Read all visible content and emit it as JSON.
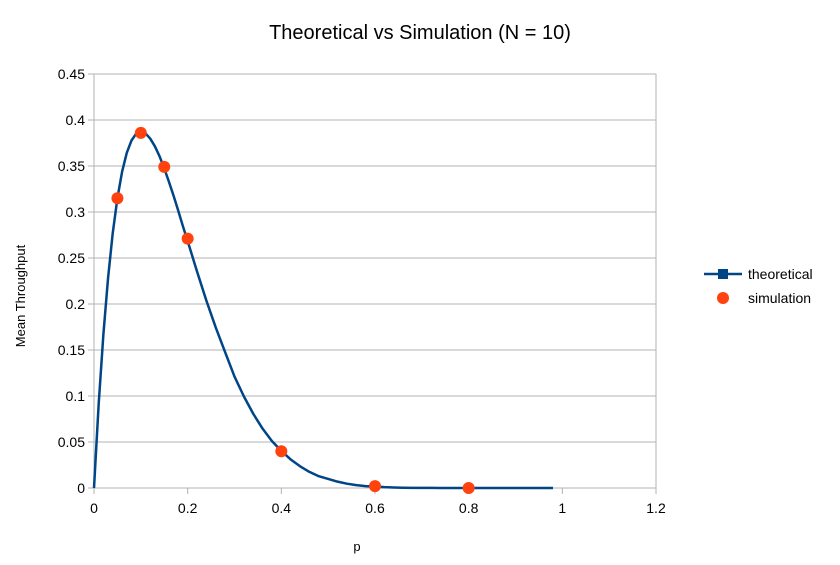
{
  "chart_data": {
    "type": "scatter",
    "title": "Theoretical vs Simulation (N = 10)",
    "xlabel": "p",
    "ylabel": "Mean Throughput",
    "xlim": [
      0,
      1.2
    ],
    "ylim": [
      0,
      0.45
    ],
    "xticks": [
      0,
      0.2,
      0.4,
      0.6,
      0.8,
      1,
      1.2
    ],
    "yticks": [
      0,
      0.05,
      0.1,
      0.15,
      0.2,
      0.25,
      0.3,
      0.35,
      0.4,
      0.45
    ],
    "grid": "horizontal",
    "legend_position": "right",
    "series": [
      {
        "name": "theoretical",
        "kind": "line",
        "color": "#004586",
        "x": [
          0,
          0.01,
          0.02,
          0.03,
          0.04,
          0.05,
          0.06,
          0.07,
          0.08,
          0.09,
          0.1,
          0.11,
          0.12,
          0.13,
          0.14,
          0.15,
          0.16,
          0.17,
          0.18,
          0.19,
          0.2,
          0.22,
          0.24,
          0.26,
          0.28,
          0.3,
          0.32,
          0.34,
          0.36,
          0.38,
          0.4,
          0.42,
          0.44,
          0.46,
          0.48,
          0.5,
          0.52,
          0.54,
          0.56,
          0.58,
          0.6,
          0.62,
          0.64,
          0.66,
          0.68,
          0.7,
          0.72,
          0.74,
          0.76,
          0.78,
          0.8,
          0.82,
          0.84,
          0.86,
          0.88,
          0.9,
          0.92,
          0.94,
          0.96,
          0.98
        ],
        "y": [
          0,
          0.0914,
          0.1667,
          0.2281,
          0.277,
          0.3151,
          0.3438,
          0.3643,
          0.3777,
          0.3851,
          0.3874,
          0.3854,
          0.3798,
          0.3714,
          0.3605,
          0.3474,
          0.3328,
          0.3175,
          0.3012,
          0.2843,
          0.2684,
          0.2353,
          0.2036,
          0.1744,
          0.1476,
          0.1211,
          0.0996,
          0.0807,
          0.0645,
          0.051,
          0.0403,
          0.031,
          0.0236,
          0.0175,
          0.0128,
          0.0098,
          0.0069,
          0.0047,
          0.0031,
          0.002,
          0.0016,
          0.0009,
          0.0005,
          0.0003,
          0.0002,
          0.0001,
          0.0001,
          0,
          0,
          0,
          0,
          0,
          0,
          0,
          0,
          0,
          0,
          0,
          0,
          0
        ]
      },
      {
        "name": "simulation",
        "kind": "scatter",
        "color": "#ff420e",
        "x": [
          0.05,
          0.1,
          0.15,
          0.2,
          0.4,
          0.6,
          0.8
        ],
        "y": [
          0.315,
          0.386,
          0.349,
          0.271,
          0.04,
          0.002,
          0.0
        ]
      }
    ]
  }
}
